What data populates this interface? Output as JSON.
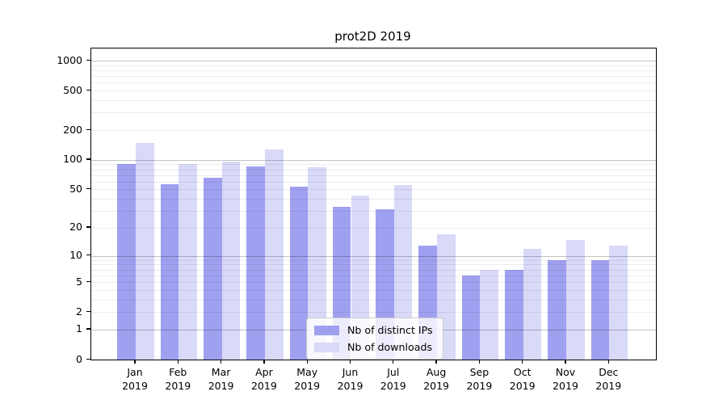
{
  "title": "prot2D 2019",
  "chart_data": {
    "type": "bar",
    "title": "prot2D 2019",
    "scale": "log1p",
    "grid": true,
    "legend_position": "lower center",
    "categories": [
      "Jan",
      "Feb",
      "Mar",
      "Apr",
      "May",
      "Jun",
      "Jul",
      "Aug",
      "Sep",
      "Oct",
      "Nov",
      "Dec"
    ],
    "x_sublabel": "2019",
    "series": [
      {
        "name": "Nb of distinct IPs",
        "color": "#a0a0f0",
        "values": [
          91,
          57,
          66,
          85,
          53,
          33,
          31,
          13,
          6,
          7,
          9,
          9
        ]
      },
      {
        "name": "Nb of downloads",
        "color": "#d9d9f8",
        "values": [
          148,
          90,
          97,
          128,
          84,
          43,
          55,
          17,
          7,
          12,
          15,
          13
        ]
      }
    ],
    "y_ticks": [
      0,
      1,
      2,
      5,
      10,
      20,
      50,
      100,
      200,
      500,
      1000
    ],
    "ylim": [
      0,
      1325
    ],
    "xlabel": "",
    "ylabel": ""
  },
  "colors": {
    "major_grid": "#c2c2c2",
    "minor_grid": "#ececec",
    "spine": "#000000",
    "background": "#ffffff",
    "legend_border": "#cccccc"
  }
}
